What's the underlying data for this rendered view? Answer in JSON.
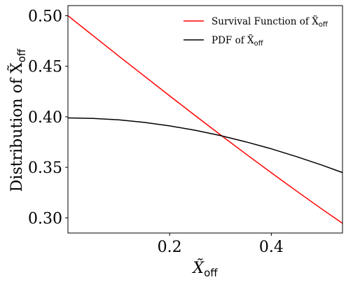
{
  "chart_data": {
    "type": "line",
    "xlabel": {
      "main": "X̃",
      "sub": "off"
    },
    "ylabel": {
      "main": "Distribution of X̃",
      "sub": "off"
    },
    "xlim": [
      0.0,
      0.54
    ],
    "ylim": [
      0.285,
      0.51
    ],
    "xticks": [
      0.2,
      0.4
    ],
    "xtick_labels": [
      "0.2",
      "0.4"
    ],
    "yticks": [
      0.3,
      0.35,
      0.4,
      0.45,
      0.5
    ],
    "ytick_labels": [
      "0.30",
      "0.35",
      "0.40",
      "0.45",
      "0.50"
    ],
    "grid": false,
    "legend_position": "top-right",
    "series": [
      {
        "name": "Survival Function of X̃",
        "name_sub": "off",
        "color": "#ff0000",
        "x": [
          0.0,
          0.05,
          0.1,
          0.15,
          0.2,
          0.25,
          0.3,
          0.35,
          0.4,
          0.45,
          0.5,
          0.54
        ],
        "y": [
          0.5,
          0.48,
          0.46,
          0.4404,
          0.4207,
          0.4013,
          0.3821,
          0.3632,
          0.3446,
          0.3264,
          0.3085,
          0.2946
        ]
      },
      {
        "name": "PDF of X̃",
        "name_sub": "off",
        "color": "#000000",
        "x": [
          0.0,
          0.05,
          0.1,
          0.15,
          0.2,
          0.25,
          0.3,
          0.35,
          0.4,
          0.45,
          0.5,
          0.54
        ],
        "y": [
          0.3989,
          0.3984,
          0.397,
          0.3945,
          0.391,
          0.3867,
          0.3814,
          0.3752,
          0.3683,
          0.3605,
          0.3521,
          0.3448
        ]
      }
    ]
  }
}
